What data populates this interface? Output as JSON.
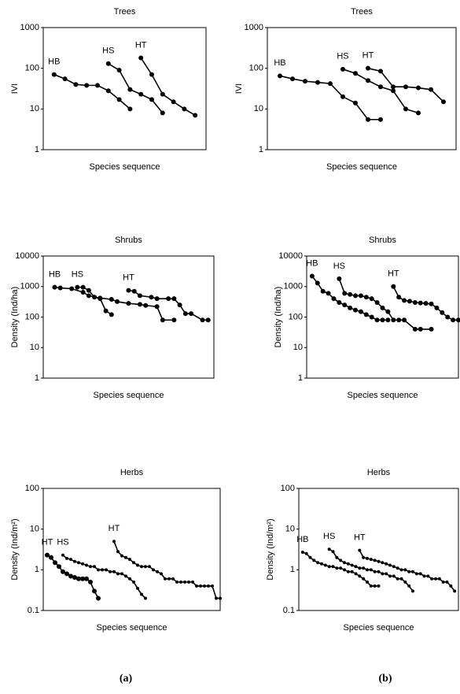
{
  "chart_data": [
    {
      "type": "line",
      "title": "Trees",
      "x_label": "Species sequence",
      "y_label": "IVI",
      "log_y": true,
      "ylim": [
        1,
        1000
      ],
      "yticks": [
        1,
        10,
        100,
        1000
      ],
      "xlim": [
        0,
        15
      ],
      "series": [
        {
          "name": "HB",
          "color": "#000000",
          "x": [
            1,
            2,
            3,
            4,
            5,
            6,
            7,
            8
          ],
          "values": [
            70,
            55,
            40,
            38,
            38,
            28,
            17,
            10
          ]
        },
        {
          "name": "HS",
          "color": "#000000",
          "x": [
            6,
            7,
            8,
            9,
            10,
            11
          ],
          "values": [
            130,
            90,
            30,
            23,
            17,
            8
          ]
        },
        {
          "name": "HT",
          "color": "#000000",
          "x": [
            9,
            10,
            11,
            12,
            13,
            14
          ],
          "values": [
            180,
            70,
            23,
            15,
            10,
            7
          ]
        }
      ]
    },
    {
      "type": "line",
      "title": "Trees",
      "x_label": "Species sequence",
      "y_label": "IVI",
      "log_y": true,
      "ylim": [
        1,
        1000
      ],
      "yticks": [
        1,
        10,
        100,
        1000
      ],
      "xlim": [
        0,
        15
      ],
      "series": [
        {
          "name": "HB",
          "color": "#000000",
          "x": [
            1,
            2,
            3,
            4,
            5,
            6,
            7,
            8,
            9
          ],
          "values": [
            65,
            55,
            48,
            45,
            42,
            20,
            14,
            5.5,
            5.5
          ]
        },
        {
          "name": "HS",
          "color": "#000000",
          "x": [
            6,
            7,
            8,
            9,
            10,
            11,
            12
          ],
          "values": [
            95,
            75,
            50,
            35,
            28,
            10,
            8
          ]
        },
        {
          "name": "HT",
          "color": "#000000",
          "x": [
            8,
            9,
            10,
            11,
            12,
            13,
            14
          ],
          "values": [
            100,
            85,
            35,
            35,
            33,
            30,
            15
          ]
        }
      ]
    },
    {
      "type": "line",
      "title": "Shrubs",
      "x_label": "Species sequence",
      "y_label": "Density (Ind/ha)",
      "log_y": true,
      "ylim": [
        1,
        10000
      ],
      "yticks": [
        1,
        10,
        100,
        1000,
        10000
      ],
      "xlim": [
        0,
        30
      ],
      "series": [
        {
          "name": "HB",
          "color": "#000000",
          "x": [
            2,
            3,
            5,
            7,
            8,
            10,
            12,
            13,
            15,
            17,
            18,
            20,
            21,
            23
          ],
          "values": [
            950,
            900,
            850,
            650,
            500,
            420,
            380,
            320,
            280,
            260,
            240,
            220,
            80,
            80
          ]
        },
        {
          "name": "HS",
          "color": "#000000",
          "x": [
            6,
            7,
            8,
            9,
            10,
            11,
            12
          ],
          "values": [
            950,
            950,
            750,
            450,
            400,
            160,
            120
          ]
        },
        {
          "name": "HT",
          "color": "#000000",
          "x": [
            15,
            16,
            17,
            19,
            20,
            22,
            23,
            24,
            25,
            26,
            28,
            29
          ],
          "values": [
            750,
            700,
            500,
            450,
            400,
            400,
            400,
            250,
            130,
            130,
            80,
            80
          ]
        }
      ]
    },
    {
      "type": "line",
      "title": "Shrubs",
      "x_label": "Species sequence",
      "y_label": "Density (Ind/ha)",
      "log_y": true,
      "ylim": [
        1,
        10000
      ],
      "yticks": [
        1,
        10,
        100,
        1000,
        10000
      ],
      "xlim": [
        0,
        28
      ],
      "series": [
        {
          "name": "HB",
          "color": "#000000",
          "x": [
            1,
            2,
            3,
            4,
            5,
            6,
            7,
            8,
            9,
            10,
            11,
            12,
            13,
            14,
            15
          ],
          "values": [
            2200,
            1300,
            700,
            600,
            400,
            300,
            250,
            200,
            170,
            150,
            120,
            100,
            80,
            80,
            80
          ]
        },
        {
          "name": "HS",
          "color": "#000000",
          "x": [
            6,
            7,
            8,
            9,
            10,
            11,
            12,
            13,
            14,
            15,
            16,
            17,
            18,
            20,
            21,
            23
          ],
          "values": [
            1800,
            600,
            550,
            500,
            500,
            450,
            400,
            300,
            200,
            150,
            80,
            80,
            80,
            40,
            40,
            40
          ]
        },
        {
          "name": "HT",
          "color": "#000000",
          "x": [
            16,
            17,
            18,
            19,
            20,
            21,
            22,
            23,
            24,
            25,
            26,
            27,
            28
          ],
          "values": [
            1000,
            450,
            350,
            330,
            300,
            290,
            280,
            270,
            200,
            140,
            100,
            80,
            80
          ]
        }
      ]
    },
    {
      "type": "line",
      "title": "Herbs",
      "x_label": "Species sequence",
      "y_label": "Density (Ind/m²)",
      "log_y": true,
      "ylim": [
        0.1,
        100
      ],
      "yticks": [
        0.1,
        1,
        10,
        100
      ],
      "xlim": [
        0,
        45
      ],
      "series": [
        {
          "name": "HT",
          "color": "#000000",
          "x": [
            1,
            2,
            3,
            4,
            5,
            6,
            7,
            8,
            9,
            10,
            11,
            12,
            13,
            14
          ],
          "values": [
            2.3,
            2,
            1.5,
            1.2,
            0.9,
            0.8,
            0.7,
            0.65,
            0.6,
            0.6,
            0.6,
            0.5,
            0.3,
            0.2
          ]
        },
        {
          "name": "HS",
          "color": "#000000",
          "x": [
            5,
            6,
            7,
            8,
            9,
            10,
            11,
            12,
            13,
            14,
            15,
            16,
            17,
            18,
            19,
            20,
            21,
            22,
            23,
            24,
            25,
            26
          ],
          "values": [
            2.3,
            1.9,
            1.8,
            1.6,
            1.5,
            1.4,
            1.3,
            1.2,
            1.2,
            1.0,
            1.0,
            1.0,
            0.9,
            0.9,
            0.8,
            0.8,
            0.7,
            0.6,
            0.5,
            0.35,
            0.25,
            0.2
          ]
        },
        {
          "name": "HT",
          "color": "#000000",
          "x": [
            18,
            19,
            20,
            21,
            22,
            23,
            24,
            25,
            26,
            27,
            28,
            29,
            30,
            31,
            32,
            33,
            34,
            35,
            36,
            37,
            38,
            39,
            40,
            41,
            42,
            43,
            44,
            45
          ],
          "values": [
            5,
            2.8,
            2.2,
            2,
            1.8,
            1.5,
            1.3,
            1.2,
            1.2,
            1.2,
            1.0,
            0.9,
            0.8,
            0.6,
            0.6,
            0.6,
            0.5,
            0.5,
            0.5,
            0.5,
            0.5,
            0.4,
            0.4,
            0.4,
            0.4,
            0.4,
            0.2,
            0.2
          ]
        }
      ]
    },
    {
      "type": "line",
      "title": "Herbs",
      "x_label": "Species sequence",
      "y_label": "Density (Ind/m²)",
      "log_y": true,
      "ylim": [
        0.1,
        100
      ],
      "yticks": [
        0.1,
        1,
        10,
        100
      ],
      "xlim": [
        0,
        42
      ],
      "series": [
        {
          "name": "HB",
          "color": "#000000",
          "x": [
            1,
            2,
            3,
            4,
            5,
            6,
            7,
            8,
            9,
            10,
            11,
            12,
            13,
            14,
            15,
            16,
            17,
            18,
            19,
            20,
            21
          ],
          "values": [
            2.7,
            2.5,
            2,
            1.7,
            1.5,
            1.4,
            1.3,
            1.2,
            1.2,
            1.1,
            1.1,
            1.0,
            0.9,
            0.9,
            0.8,
            0.7,
            0.6,
            0.5,
            0.4,
            0.4,
            0.4
          ]
        },
        {
          "name": "HS",
          "color": "#000000",
          "x": [
            8,
            9,
            10,
            11,
            12,
            13,
            14,
            15,
            16,
            17,
            18,
            19,
            20,
            21,
            22,
            23,
            24,
            25,
            26,
            27,
            28,
            29,
            30
          ],
          "values": [
            3.2,
            2.8,
            2,
            1.7,
            1.5,
            1.4,
            1.3,
            1.2,
            1.1,
            1.1,
            1.0,
            1.0,
            0.9,
            0.9,
            0.8,
            0.8,
            0.7,
            0.7,
            0.6,
            0.6,
            0.5,
            0.4,
            0.3
          ]
        },
        {
          "name": "HT",
          "color": "#000000",
          "x": [
            16,
            17,
            18,
            19,
            20,
            21,
            22,
            23,
            24,
            25,
            26,
            27,
            28,
            29,
            30,
            31,
            32,
            33,
            34,
            35,
            36,
            37,
            38,
            39,
            40,
            41
          ],
          "values": [
            3,
            2,
            1.9,
            1.8,
            1.7,
            1.6,
            1.5,
            1.4,
            1.3,
            1.2,
            1.1,
            1.0,
            1.0,
            0.9,
            0.9,
            0.8,
            0.8,
            0.7,
            0.7,
            0.6,
            0.6,
            0.6,
            0.5,
            0.5,
            0.4,
            0.3
          ]
        }
      ]
    }
  ],
  "column_labels": [
    "(a)",
    "(b)"
  ]
}
